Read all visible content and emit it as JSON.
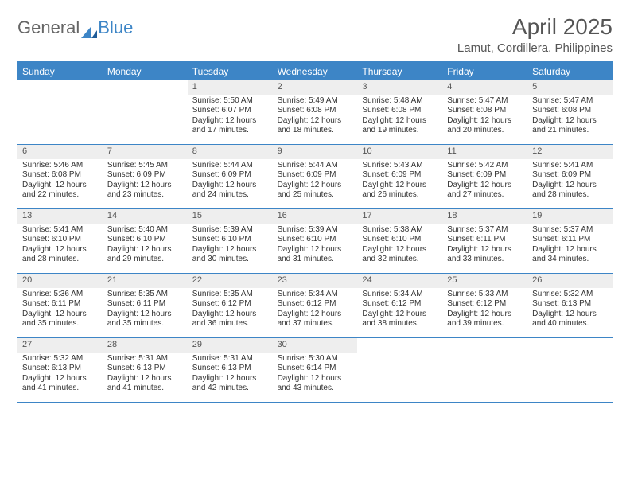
{
  "brand": {
    "part1": "General",
    "part2": "Blue"
  },
  "title": "April 2025",
  "location": "Lamut, Cordillera, Philippines",
  "colors": {
    "header_bg": "#3d85c6",
    "header_text": "#ffffff",
    "daynum_bg": "#eeeeee",
    "text": "#333333",
    "border": "#3d85c6",
    "background": "#ffffff"
  },
  "fonts": {
    "title_size": 28,
    "location_size": 15,
    "weekday_size": 12,
    "daynum_size": 11,
    "body_size": 10
  },
  "weekdays": [
    "Sunday",
    "Monday",
    "Tuesday",
    "Wednesday",
    "Thursday",
    "Friday",
    "Saturday"
  ],
  "weeks": [
    [
      {
        "day": "",
        "sunrise": "",
        "sunset": "",
        "daylight": ""
      },
      {
        "day": "",
        "sunrise": "",
        "sunset": "",
        "daylight": ""
      },
      {
        "day": "1",
        "sunrise": "Sunrise: 5:50 AM",
        "sunset": "Sunset: 6:07 PM",
        "daylight": "Daylight: 12 hours and 17 minutes."
      },
      {
        "day": "2",
        "sunrise": "Sunrise: 5:49 AM",
        "sunset": "Sunset: 6:08 PM",
        "daylight": "Daylight: 12 hours and 18 minutes."
      },
      {
        "day": "3",
        "sunrise": "Sunrise: 5:48 AM",
        "sunset": "Sunset: 6:08 PM",
        "daylight": "Daylight: 12 hours and 19 minutes."
      },
      {
        "day": "4",
        "sunrise": "Sunrise: 5:47 AM",
        "sunset": "Sunset: 6:08 PM",
        "daylight": "Daylight: 12 hours and 20 minutes."
      },
      {
        "day": "5",
        "sunrise": "Sunrise: 5:47 AM",
        "sunset": "Sunset: 6:08 PM",
        "daylight": "Daylight: 12 hours and 21 minutes."
      }
    ],
    [
      {
        "day": "6",
        "sunrise": "Sunrise: 5:46 AM",
        "sunset": "Sunset: 6:08 PM",
        "daylight": "Daylight: 12 hours and 22 minutes."
      },
      {
        "day": "7",
        "sunrise": "Sunrise: 5:45 AM",
        "sunset": "Sunset: 6:09 PM",
        "daylight": "Daylight: 12 hours and 23 minutes."
      },
      {
        "day": "8",
        "sunrise": "Sunrise: 5:44 AM",
        "sunset": "Sunset: 6:09 PM",
        "daylight": "Daylight: 12 hours and 24 minutes."
      },
      {
        "day": "9",
        "sunrise": "Sunrise: 5:44 AM",
        "sunset": "Sunset: 6:09 PM",
        "daylight": "Daylight: 12 hours and 25 minutes."
      },
      {
        "day": "10",
        "sunrise": "Sunrise: 5:43 AM",
        "sunset": "Sunset: 6:09 PM",
        "daylight": "Daylight: 12 hours and 26 minutes."
      },
      {
        "day": "11",
        "sunrise": "Sunrise: 5:42 AM",
        "sunset": "Sunset: 6:09 PM",
        "daylight": "Daylight: 12 hours and 27 minutes."
      },
      {
        "day": "12",
        "sunrise": "Sunrise: 5:41 AM",
        "sunset": "Sunset: 6:09 PM",
        "daylight": "Daylight: 12 hours and 28 minutes."
      }
    ],
    [
      {
        "day": "13",
        "sunrise": "Sunrise: 5:41 AM",
        "sunset": "Sunset: 6:10 PM",
        "daylight": "Daylight: 12 hours and 28 minutes."
      },
      {
        "day": "14",
        "sunrise": "Sunrise: 5:40 AM",
        "sunset": "Sunset: 6:10 PM",
        "daylight": "Daylight: 12 hours and 29 minutes."
      },
      {
        "day": "15",
        "sunrise": "Sunrise: 5:39 AM",
        "sunset": "Sunset: 6:10 PM",
        "daylight": "Daylight: 12 hours and 30 minutes."
      },
      {
        "day": "16",
        "sunrise": "Sunrise: 5:39 AM",
        "sunset": "Sunset: 6:10 PM",
        "daylight": "Daylight: 12 hours and 31 minutes."
      },
      {
        "day": "17",
        "sunrise": "Sunrise: 5:38 AM",
        "sunset": "Sunset: 6:10 PM",
        "daylight": "Daylight: 12 hours and 32 minutes."
      },
      {
        "day": "18",
        "sunrise": "Sunrise: 5:37 AM",
        "sunset": "Sunset: 6:11 PM",
        "daylight": "Daylight: 12 hours and 33 minutes."
      },
      {
        "day": "19",
        "sunrise": "Sunrise: 5:37 AM",
        "sunset": "Sunset: 6:11 PM",
        "daylight": "Daylight: 12 hours and 34 minutes."
      }
    ],
    [
      {
        "day": "20",
        "sunrise": "Sunrise: 5:36 AM",
        "sunset": "Sunset: 6:11 PM",
        "daylight": "Daylight: 12 hours and 35 minutes."
      },
      {
        "day": "21",
        "sunrise": "Sunrise: 5:35 AM",
        "sunset": "Sunset: 6:11 PM",
        "daylight": "Daylight: 12 hours and 35 minutes."
      },
      {
        "day": "22",
        "sunrise": "Sunrise: 5:35 AM",
        "sunset": "Sunset: 6:12 PM",
        "daylight": "Daylight: 12 hours and 36 minutes."
      },
      {
        "day": "23",
        "sunrise": "Sunrise: 5:34 AM",
        "sunset": "Sunset: 6:12 PM",
        "daylight": "Daylight: 12 hours and 37 minutes."
      },
      {
        "day": "24",
        "sunrise": "Sunrise: 5:34 AM",
        "sunset": "Sunset: 6:12 PM",
        "daylight": "Daylight: 12 hours and 38 minutes."
      },
      {
        "day": "25",
        "sunrise": "Sunrise: 5:33 AM",
        "sunset": "Sunset: 6:12 PM",
        "daylight": "Daylight: 12 hours and 39 minutes."
      },
      {
        "day": "26",
        "sunrise": "Sunrise: 5:32 AM",
        "sunset": "Sunset: 6:13 PM",
        "daylight": "Daylight: 12 hours and 40 minutes."
      }
    ],
    [
      {
        "day": "27",
        "sunrise": "Sunrise: 5:32 AM",
        "sunset": "Sunset: 6:13 PM",
        "daylight": "Daylight: 12 hours and 41 minutes."
      },
      {
        "day": "28",
        "sunrise": "Sunrise: 5:31 AM",
        "sunset": "Sunset: 6:13 PM",
        "daylight": "Daylight: 12 hours and 41 minutes."
      },
      {
        "day": "29",
        "sunrise": "Sunrise: 5:31 AM",
        "sunset": "Sunset: 6:13 PM",
        "daylight": "Daylight: 12 hours and 42 minutes."
      },
      {
        "day": "30",
        "sunrise": "Sunrise: 5:30 AM",
        "sunset": "Sunset: 6:14 PM",
        "daylight": "Daylight: 12 hours and 43 minutes."
      },
      {
        "day": "",
        "sunrise": "",
        "sunset": "",
        "daylight": ""
      },
      {
        "day": "",
        "sunrise": "",
        "sunset": "",
        "daylight": ""
      },
      {
        "day": "",
        "sunrise": "",
        "sunset": "",
        "daylight": ""
      }
    ]
  ]
}
